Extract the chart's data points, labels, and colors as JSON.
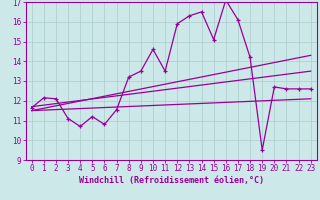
{
  "xlabel": "Windchill (Refroidissement éolien,°C)",
  "bg_color": "#cce8e8",
  "line_color": "#990099",
  "grid_color": "#aacccc",
  "xlim": [
    -0.5,
    23.5
  ],
  "ylim": [
    9,
    17
  ],
  "xticks": [
    0,
    1,
    2,
    3,
    4,
    5,
    6,
    7,
    8,
    9,
    10,
    11,
    12,
    13,
    14,
    15,
    16,
    17,
    18,
    19,
    20,
    21,
    22,
    23
  ],
  "yticks": [
    9,
    10,
    11,
    12,
    13,
    14,
    15,
    16,
    17
  ],
  "line1_x": [
    0,
    1,
    2,
    3,
    4,
    5,
    6,
    7,
    8,
    9,
    10,
    11,
    12,
    13,
    14,
    15,
    16,
    17,
    18,
    19,
    20,
    21,
    22,
    23
  ],
  "line1_y": [
    11.65,
    12.15,
    12.1,
    11.1,
    10.7,
    11.2,
    10.8,
    11.55,
    13.2,
    13.5,
    14.6,
    13.5,
    15.9,
    16.3,
    16.5,
    15.1,
    17.1,
    16.1,
    14.2,
    9.5,
    12.7,
    12.6,
    12.6,
    12.6
  ],
  "line2_x": [
    0,
    23
  ],
  "line2_y": [
    11.7,
    13.5
  ],
  "line3_x": [
    0,
    23
  ],
  "line3_y": [
    11.5,
    14.3
  ],
  "line4_x": [
    0,
    23
  ],
  "line4_y": [
    11.5,
    12.1
  ],
  "tick_fontsize": 5.5,
  "xlabel_fontsize": 6
}
